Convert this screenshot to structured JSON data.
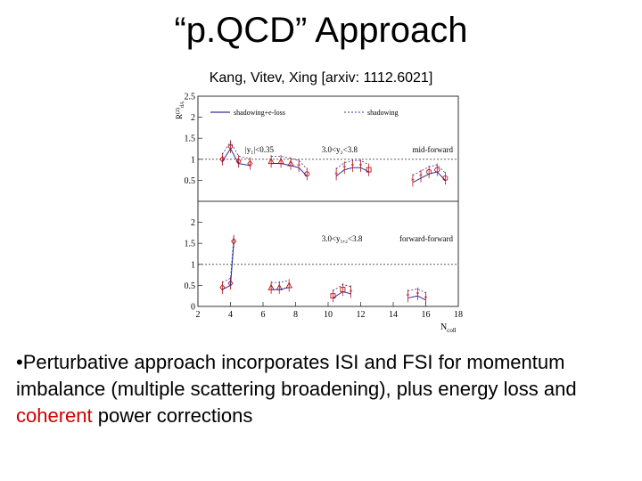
{
  "slide": {
    "title": "“p.QCD” Approach",
    "citation": "Kang, Vitev, Xing [arxiv: 1112.6021]",
    "bullet_symbol": "•",
    "bullet_before": "Perturbative approach incorporates ISI and FSI for momentum imbalance (multiple scattering broadening), plus energy loss and ",
    "bullet_highlight": "coherent",
    "bullet_after": " power corrections",
    "highlight_color": "#d00000"
  },
  "chart_data": {
    "type": "scatter",
    "xlabel": "N",
    "xlabel_sub": "coll",
    "ylabel": "R",
    "ylabel_sup": "(2)",
    "ylabel_sub": "dA",
    "xlim": [
      2,
      18
    ],
    "x_ticks": [
      "2",
      "4",
      "6",
      "8",
      "10",
      "12",
      "14",
      "16",
      "18"
    ],
    "legend": {
      "solid": "shadowing+e-loss",
      "dashed": "shadowing"
    },
    "panels": [
      {
        "ylim": [
          0,
          2.5
        ],
        "y_ticks": [
          "0.5",
          "1",
          "1.5",
          "2",
          "2.5"
        ],
        "label": "mid-forward",
        "cuts": [
          "|y₁|<0.35",
          "3.0<y₂<3.8"
        ],
        "points": [
          {
            "x": 3.5,
            "y": 1.0,
            "marker": "diamond"
          },
          {
            "x": 4.0,
            "y": 1.3,
            "marker": "diamond"
          },
          {
            "x": 4.5,
            "y": 0.95,
            "marker": "diamond"
          },
          {
            "x": 5.2,
            "y": 0.9,
            "marker": "diamond"
          },
          {
            "x": 6.5,
            "y": 0.95,
            "marker": "triangle"
          },
          {
            "x": 7.1,
            "y": 0.95,
            "marker": "triangle"
          },
          {
            "x": 7.7,
            "y": 0.9,
            "marker": "triangle"
          },
          {
            "x": 8.2,
            "y": 0.85,
            "marker": "star"
          },
          {
            "x": 8.7,
            "y": 0.65,
            "marker": "circle"
          },
          {
            "x": 10.5,
            "y": 0.65,
            "marker": "star"
          },
          {
            "x": 11.0,
            "y": 0.8,
            "marker": "star"
          },
          {
            "x": 11.5,
            "y": 0.85,
            "marker": "star"
          },
          {
            "x": 12.0,
            "y": 0.85,
            "marker": "star"
          },
          {
            "x": 12.5,
            "y": 0.75,
            "marker": "square"
          },
          {
            "x": 15.2,
            "y": 0.5,
            "marker": "star"
          },
          {
            "x": 15.7,
            "y": 0.6,
            "marker": "star"
          },
          {
            "x": 16.2,
            "y": 0.7,
            "marker": "circle"
          },
          {
            "x": 16.7,
            "y": 0.75,
            "marker": "circle"
          },
          {
            "x": 17.2,
            "y": 0.55,
            "marker": "circle"
          }
        ]
      },
      {
        "ylim": [
          0,
          2.5
        ],
        "y_ticks": [
          "0",
          "0.5",
          "1",
          "1.5",
          "2"
        ],
        "label": "forward-forward",
        "cuts": [
          "3.0<y₁,₂<3.8"
        ],
        "points": [
          {
            "x": 3.5,
            "y": 0.45,
            "marker": "diamond"
          },
          {
            "x": 4.0,
            "y": 0.55,
            "marker": "diamond"
          },
          {
            "x": 4.2,
            "y": 1.55,
            "marker": "diamond"
          },
          {
            "x": 6.5,
            "y": 0.45,
            "marker": "triangle"
          },
          {
            "x": 7.0,
            "y": 0.45,
            "marker": "triangle"
          },
          {
            "x": 7.6,
            "y": 0.5,
            "marker": "triangle"
          },
          {
            "x": 10.3,
            "y": 0.25,
            "marker": "square"
          },
          {
            "x": 10.9,
            "y": 0.4,
            "marker": "square"
          },
          {
            "x": 11.4,
            "y": 0.35,
            "marker": "star"
          },
          {
            "x": 14.9,
            "y": 0.25,
            "marker": "star"
          },
          {
            "x": 15.5,
            "y": 0.3,
            "marker": "star"
          },
          {
            "x": 16.0,
            "y": 0.2,
            "marker": "star"
          }
        ]
      }
    ]
  }
}
